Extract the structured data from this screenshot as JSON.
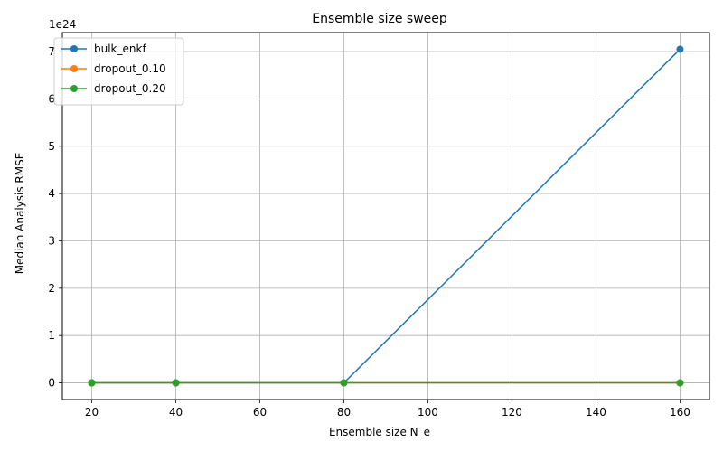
{
  "chart_data": {
    "type": "line",
    "title": "Ensemble size sweep",
    "xlabel": "Ensemble size N_e",
    "ylabel": "Median Analysis RMSE",
    "y_offset_label": "1e24",
    "x": [
      20,
      40,
      80,
      160
    ],
    "xlim": [
      13,
      167
    ],
    "ylim": [
      -0.3525,
      7.4025
    ],
    "x_ticks": [
      20,
      40,
      60,
      80,
      100,
      120,
      140,
      160
    ],
    "y_ticks": [
      0,
      1,
      2,
      3,
      4,
      5,
      6,
      7
    ],
    "grid": true,
    "legend_position": "upper-left",
    "series": [
      {
        "name": "bulk_enkf",
        "color": "#1f77b4",
        "values": [
          0,
          0,
          0,
          7.05
        ]
      },
      {
        "name": "dropout_0.10",
        "color": "#ff7f0e",
        "values": [
          0,
          0,
          0,
          0
        ]
      },
      {
        "name": "dropout_0.20",
        "color": "#2ca02c",
        "values": [
          0,
          0,
          0,
          0
        ]
      }
    ]
  }
}
